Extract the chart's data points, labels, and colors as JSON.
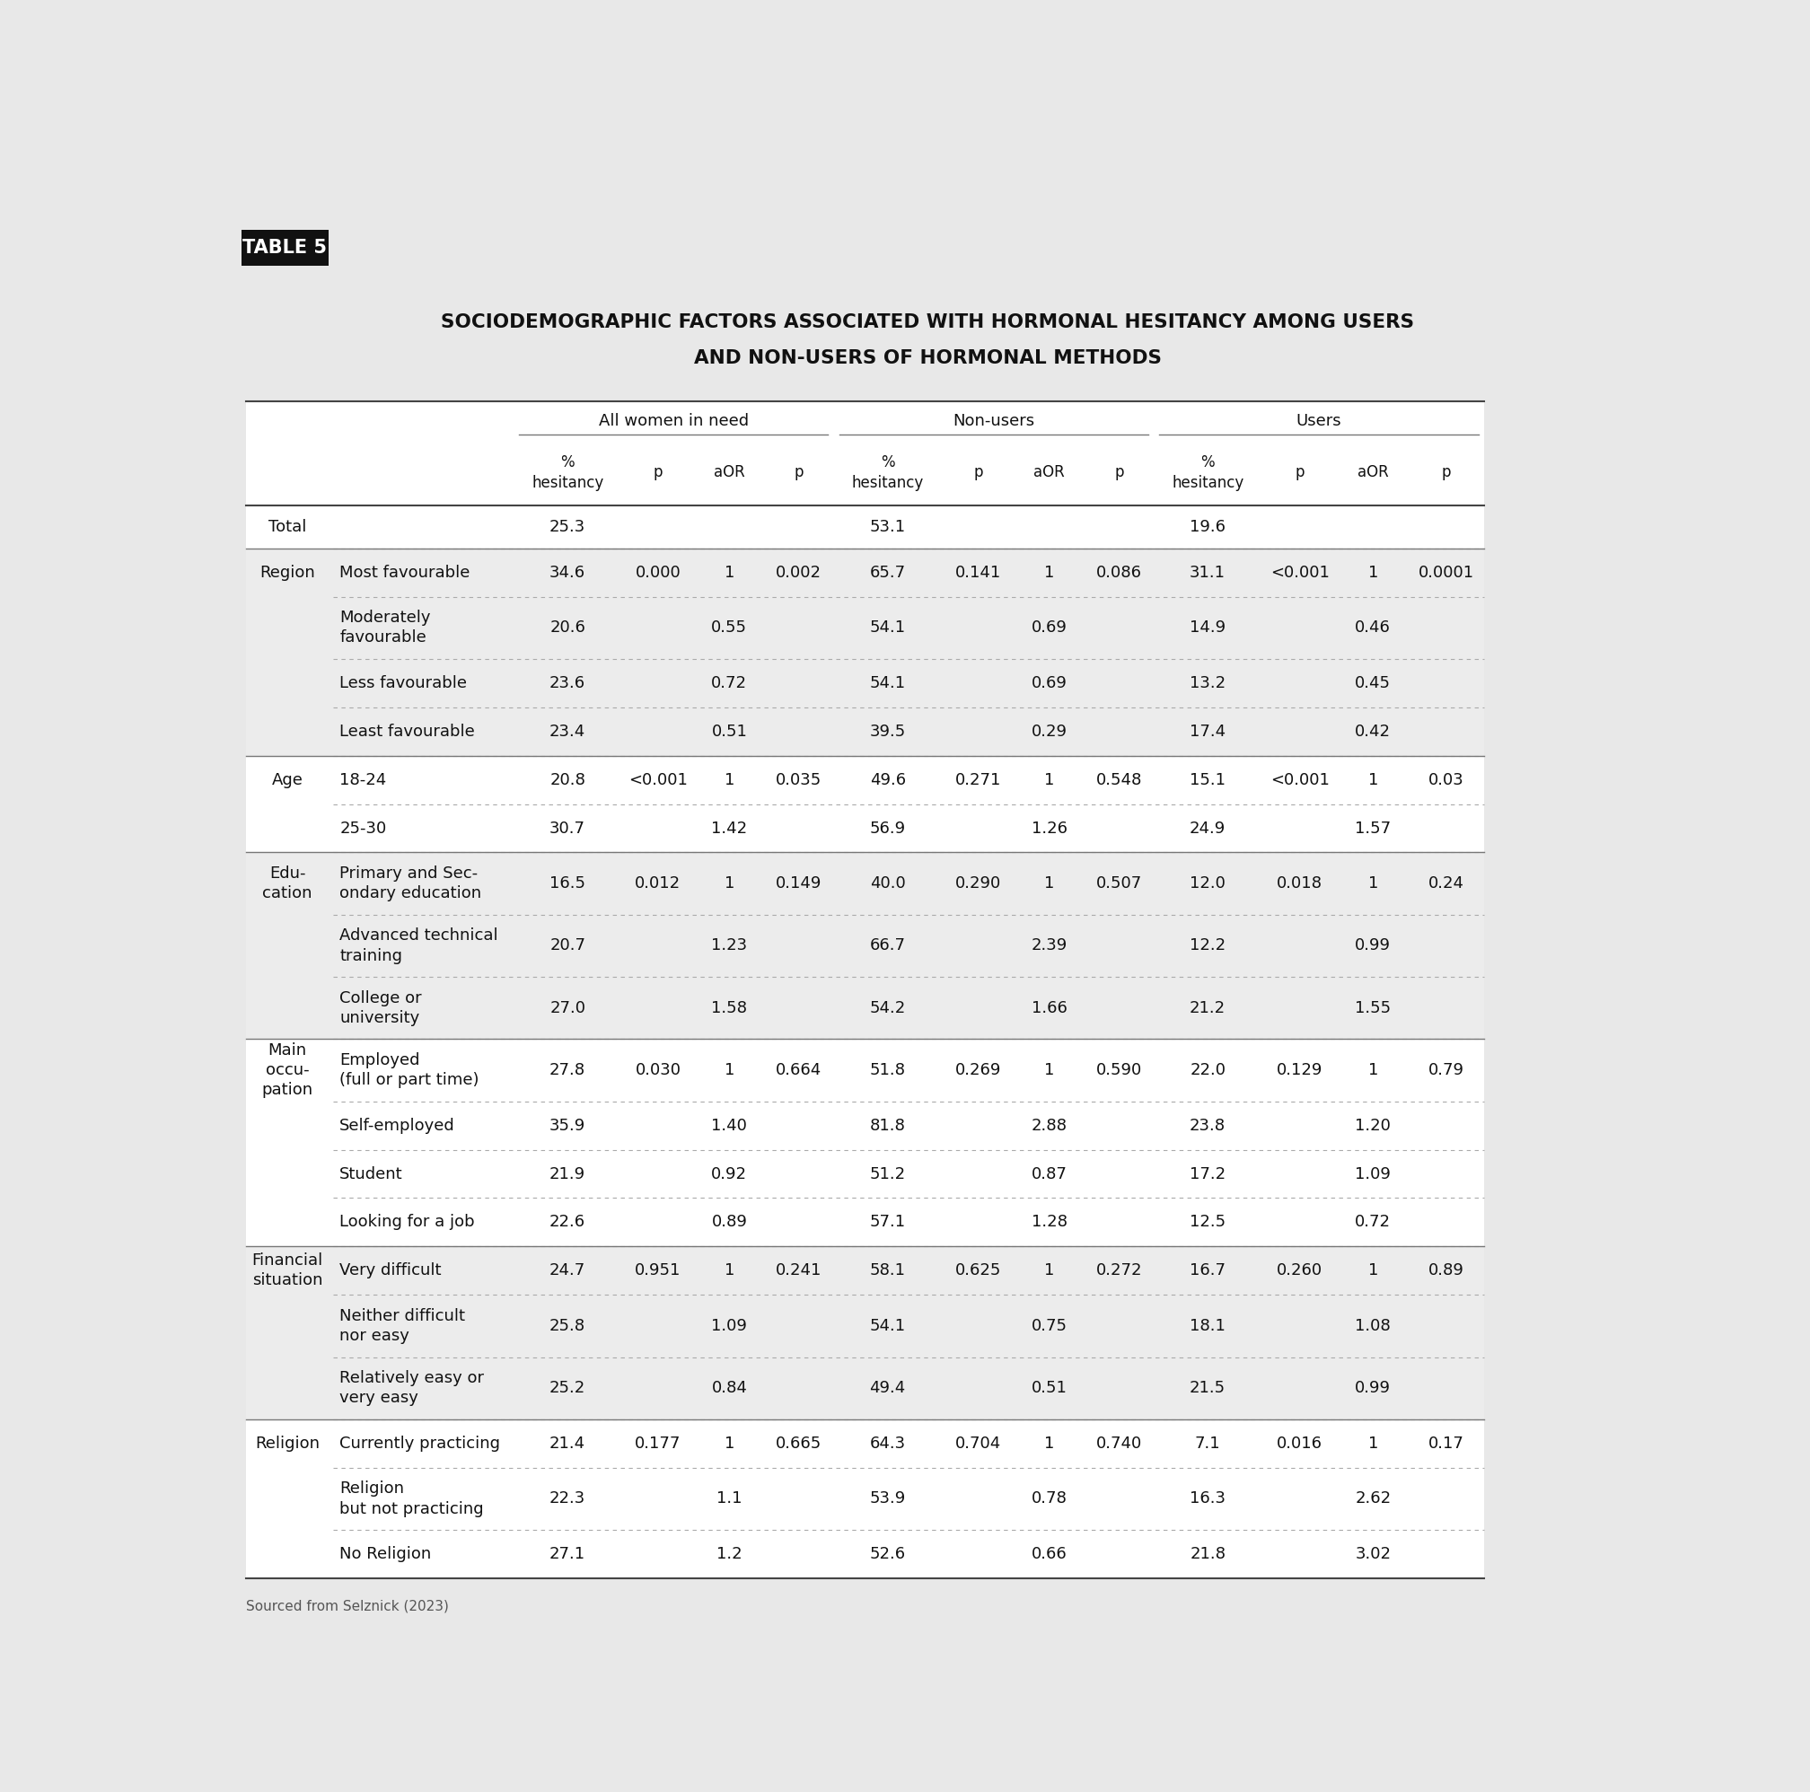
{
  "title_line1": "SOCIODEMOGRAPHIC FACTORS ASSOCIATED WITH HORMONAL HESITANCY AMONG USERS",
  "title_line2": "AND NON-USERS OF HORMONAL METHODS",
  "table_label": "TABLE 5",
  "source": "Sourced from Selznick (2023)",
  "bg_color": "#e8e8e8",
  "col_groups": [
    "All women in need",
    "Non-users",
    "Users"
  ],
  "col_headers": [
    "%\nhesitancy",
    "p",
    "aOR",
    "p",
    "%\nhesitancy",
    "p",
    "aOR",
    "p",
    "%\nhesitancy",
    "p",
    "aOR",
    "p"
  ],
  "rows": [
    {
      "cat": "Total",
      "sub": "",
      "vals": [
        "25.3",
        "",
        "",
        "",
        "53.1",
        "",
        "",
        "",
        "19.6",
        "",
        "",
        ""
      ],
      "white": true,
      "section_start": false
    },
    {
      "cat": "Region",
      "sub": "Most favourable",
      "vals": [
        "34.6",
        "0.000",
        "1",
        "0.002",
        "65.7",
        "0.141",
        "1",
        "0.086",
        "31.1",
        "<0.001",
        "1",
        "0.0001"
      ],
      "white": false,
      "section_start": true
    },
    {
      "cat": "",
      "sub": "Moderately\nfavourable",
      "vals": [
        "20.6",
        "",
        "0.55",
        "",
        "54.1",
        "",
        "0.69",
        "",
        "14.9",
        "",
        "0.46",
        ""
      ],
      "white": false,
      "section_start": false
    },
    {
      "cat": "",
      "sub": "Less favourable",
      "vals": [
        "23.6",
        "",
        "0.72",
        "",
        "54.1",
        "",
        "0.69",
        "",
        "13.2",
        "",
        "0.45",
        ""
      ],
      "white": false,
      "section_start": false
    },
    {
      "cat": "",
      "sub": "Least favourable",
      "vals": [
        "23.4",
        "",
        "0.51",
        "",
        "39.5",
        "",
        "0.29",
        "",
        "17.4",
        "",
        "0.42",
        ""
      ],
      "white": false,
      "section_start": false
    },
    {
      "cat": "Age",
      "sub": "18-24",
      "vals": [
        "20.8",
        "<0.001",
        "1",
        "0.035",
        "49.6",
        "0.271",
        "1",
        "0.548",
        "15.1",
        "<0.001",
        "1",
        "0.03"
      ],
      "white": true,
      "section_start": true
    },
    {
      "cat": "",
      "sub": "25-30",
      "vals": [
        "30.7",
        "",
        "1.42",
        "",
        "56.9",
        "",
        "1.26",
        "",
        "24.9",
        "",
        "1.57",
        ""
      ],
      "white": true,
      "section_start": false
    },
    {
      "cat": "Edu-\ncation",
      "sub": "Primary and Sec-\nondary education",
      "vals": [
        "16.5",
        "0.012",
        "1",
        "0.149",
        "40.0",
        "0.290",
        "1",
        "0.507",
        "12.0",
        "0.018",
        "1",
        "0.24"
      ],
      "white": false,
      "section_start": true
    },
    {
      "cat": "",
      "sub": "Advanced technical\ntraining",
      "vals": [
        "20.7",
        "",
        "1.23",
        "",
        "66.7",
        "",
        "2.39",
        "",
        "12.2",
        "",
        "0.99",
        ""
      ],
      "white": false,
      "section_start": false
    },
    {
      "cat": "",
      "sub": "College or\nuniversity",
      "vals": [
        "27.0",
        "",
        "1.58",
        "",
        "54.2",
        "",
        "1.66",
        "",
        "21.2",
        "",
        "1.55",
        ""
      ],
      "white": false,
      "section_start": false
    },
    {
      "cat": "Main\noccu-\npation",
      "sub": "Employed\n(full or part time)",
      "vals": [
        "27.8",
        "0.030",
        "1",
        "0.664",
        "51.8",
        "0.269",
        "1",
        "0.590",
        "22.0",
        "0.129",
        "1",
        "0.79"
      ],
      "white": true,
      "section_start": true
    },
    {
      "cat": "",
      "sub": "Self-employed",
      "vals": [
        "35.9",
        "",
        "1.40",
        "",
        "81.8",
        "",
        "2.88",
        "",
        "23.8",
        "",
        "1.20",
        ""
      ],
      "white": true,
      "section_start": false
    },
    {
      "cat": "",
      "sub": "Student",
      "vals": [
        "21.9",
        "",
        "0.92",
        "",
        "51.2",
        "",
        "0.87",
        "",
        "17.2",
        "",
        "1.09",
        ""
      ],
      "white": true,
      "section_start": false
    },
    {
      "cat": "",
      "sub": "Looking for a job",
      "vals": [
        "22.6",
        "",
        "0.89",
        "",
        "57.1",
        "",
        "1.28",
        "",
        "12.5",
        "",
        "0.72",
        ""
      ],
      "white": true,
      "section_start": false
    },
    {
      "cat": "Financial\nsituation",
      "sub": "Very difficult",
      "vals": [
        "24.7",
        "0.951",
        "1",
        "0.241",
        "58.1",
        "0.625",
        "1",
        "0.272",
        "16.7",
        "0.260",
        "1",
        "0.89"
      ],
      "white": false,
      "section_start": true
    },
    {
      "cat": "",
      "sub": "Neither difficult\nnor easy",
      "vals": [
        "25.8",
        "",
        "1.09",
        "",
        "54.1",
        "",
        "0.75",
        "",
        "18.1",
        "",
        "1.08",
        ""
      ],
      "white": false,
      "section_start": false
    },
    {
      "cat": "",
      "sub": "Relatively easy or\nvery easy",
      "vals": [
        "25.2",
        "",
        "0.84",
        "",
        "49.4",
        "",
        "0.51",
        "",
        "21.5",
        "",
        "0.99",
        ""
      ],
      "white": false,
      "section_start": false
    },
    {
      "cat": "Religion",
      "sub": "Currently practicing",
      "vals": [
        "21.4",
        "0.177",
        "1",
        "0.665",
        "64.3",
        "0.704",
        "1",
        "0.740",
        "7.1",
        "0.016",
        "1",
        "0.17"
      ],
      "white": true,
      "section_start": true
    },
    {
      "cat": "",
      "sub": "Religion\nbut not practicing",
      "vals": [
        "22.3",
        "",
        "1.1",
        "",
        "53.9",
        "",
        "0.78",
        "",
        "16.3",
        "",
        "2.62",
        ""
      ],
      "white": true,
      "section_start": false
    },
    {
      "cat": "",
      "sub": "No Religion",
      "vals": [
        "27.1",
        "",
        "1.2",
        "",
        "52.6",
        "",
        "0.66",
        "",
        "21.8",
        "",
        "3.02",
        ""
      ],
      "white": true,
      "section_start": false
    }
  ]
}
